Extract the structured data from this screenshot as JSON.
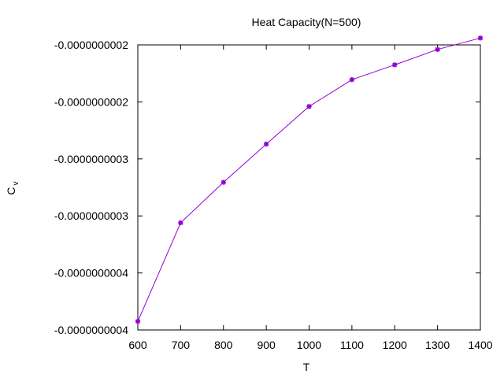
{
  "chart_data": {
    "type": "line",
    "title": "Heat Capacity(N=500)",
    "xlabel": "T",
    "ylabel_main": "C",
    "ylabel_sub": "v",
    "xlim": [
      600,
      1400
    ],
    "ylim": [
      -4.5e-10,
      -2e-10
    ],
    "x_ticks": [
      600,
      700,
      800,
      900,
      1000,
      1100,
      1200,
      1300,
      1400
    ],
    "x_tick_labels": [
      "600",
      "700",
      "800",
      "900",
      "1000",
      "1100",
      "1200",
      "1300",
      "1400"
    ],
    "y_ticks": [
      -2e-10,
      -2.5e-10,
      -3e-10,
      -3.5e-10,
      -4e-10,
      -4.5e-10
    ],
    "y_tick_labels": [
      "-0.0000000002",
      "-0.0000000002",
      "-0.0000000003",
      "-0.0000000003",
      "-0.0000000004",
      "-0.0000000004"
    ],
    "series": [
      {
        "color": "#9400d3",
        "marker": "asterisk",
        "x": [
          600,
          700,
          800,
          900,
          1000,
          1100,
          1200,
          1300,
          1400
        ],
        "y": [
          -4.425e-10,
          -3.56e-10,
          -3.205e-10,
          -2.87e-10,
          -2.54e-10,
          -2.305e-10,
          -2.175e-10,
          -2.04e-10,
          -1.94e-10
        ]
      }
    ],
    "grid": false,
    "legend": "none"
  }
}
